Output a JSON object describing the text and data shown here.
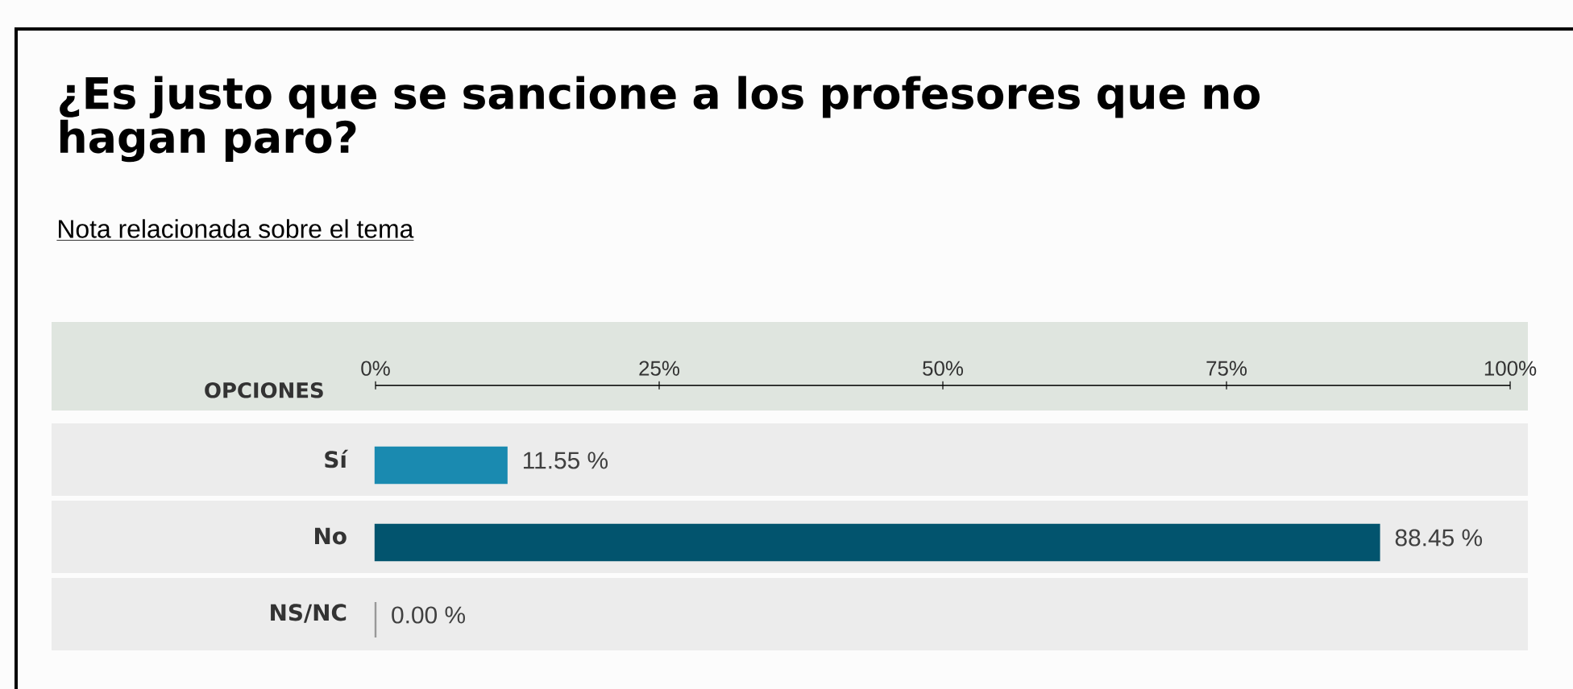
{
  "chart_data": {
    "type": "bar",
    "orientation": "horizontal",
    "title": "¿Es justo que se sancione a los profesores que no hagan paro?",
    "subtitle": "Nota relacionada sobre el tema",
    "ylabel": "OPCIONES",
    "categories": [
      "Sí",
      "No",
      "NS/NC"
    ],
    "values": [
      11.55,
      88.45,
      0.0
    ],
    "colors": [
      "#1a8ab0",
      "#02546e",
      "#999999"
    ],
    "value_labels": [
      "11.55 %",
      "88.45 %",
      "0.00 %"
    ],
    "xlim": [
      0,
      100
    ],
    "xticks": [
      {
        "value": 0,
        "label": "0%"
      },
      {
        "value": 25,
        "label": "25%"
      },
      {
        "value": 50,
        "label": "50%"
      },
      {
        "value": 75,
        "label": "75%"
      },
      {
        "value": 100,
        "label": "100%"
      }
    ]
  }
}
